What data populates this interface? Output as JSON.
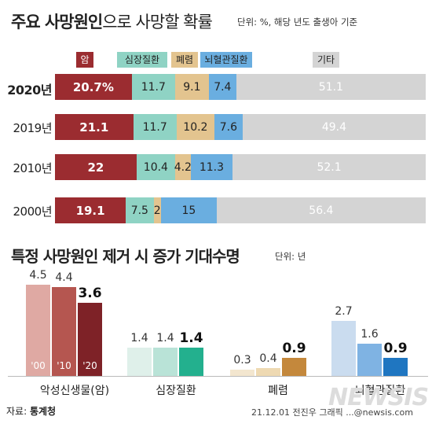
{
  "header": {
    "title_bold": "주요 사망원인",
    "title_light": "으로 사망할 확률",
    "unit": "단위: %, 해당 년도 출생아 기준"
  },
  "section2": {
    "title": "특정 사망원인 제거 시 증가 기대수명",
    "unit": "단위: 년"
  },
  "footer": {
    "source_label": "자료:",
    "source": "통계청",
    "credit": "21.12.01 전진우 그래픽 ...@newsis.com"
  },
  "watermark": "NEWSIS",
  "colors": {
    "cancer": "#9b2c30",
    "heart": "#8fd3c4",
    "pneumonia": "#e3c48f",
    "cerebro": "#6aaee0",
    "other": "#d4d4d4"
  },
  "chart_data": [
    {
      "type": "bar",
      "stacked": true,
      "orientation": "horizontal",
      "title": "주요 사망원인으로 사망할 확률",
      "unit": "단위: %, 해당 년도 출생아 기준",
      "categories": [
        "2020년",
        "2019년",
        "2010년",
        "2000년"
      ],
      "series": [
        {
          "name": "암",
          "values": [
            20.7,
            21.1,
            22,
            19.1
          ],
          "labels": [
            "20.7%",
            "21.1",
            "22",
            "19.1"
          ]
        },
        {
          "name": "심장질환",
          "values": [
            11.7,
            11.7,
            10.4,
            7.5
          ],
          "labels": [
            "11.7",
            "11.7",
            "10.4",
            "7.5"
          ]
        },
        {
          "name": "폐렴",
          "values": [
            9.1,
            10.2,
            4.2,
            2
          ],
          "labels": [
            "9.1",
            "10.2",
            "4.2",
            "2"
          ]
        },
        {
          "name": "뇌혈관질환",
          "values": [
            7.4,
            7.6,
            11.3,
            15
          ],
          "labels": [
            "7.4",
            "7.6",
            "11.3",
            "15"
          ]
        },
        {
          "name": "기타",
          "values": [
            51.1,
            49.4,
            52.1,
            56.4
          ],
          "labels": [
            "51.1",
            "49.4",
            "52.1",
            "56.4"
          ]
        }
      ]
    },
    {
      "type": "bar",
      "title": "특정 사망원인 제거 시 증가 기대수명",
      "unit": "단위: 년",
      "categories": [
        "악성신생물(암)",
        "심장질환",
        "폐렴",
        "뇌혈관질환"
      ],
      "year_labels": [
        "'00",
        "'10",
        "'20"
      ],
      "series": [
        {
          "name": "2000",
          "values": [
            4.5,
            1.4,
            0.3,
            2.7
          ],
          "labels": [
            "4.5",
            "1.4",
            "0.3",
            "2.7"
          ]
        },
        {
          "name": "2010",
          "values": [
            4.4,
            1.4,
            0.4,
            1.6
          ],
          "labels": [
            "4.4",
            "1.4",
            "0.4",
            "1.6"
          ]
        },
        {
          "name": "2020",
          "values": [
            3.6,
            1.4,
            0.9,
            0.9
          ],
          "labels": [
            "3.6",
            "1.4",
            "0.9",
            "0.9"
          ]
        }
      ],
      "palettes": [
        [
          "#dfa9a3",
          "#b55650",
          "#7e2227"
        ],
        [
          "#dff0ea",
          "#b9e3d7",
          "#23b08e"
        ],
        [
          "#f3e6cf",
          "#eed9b2",
          "#c4883c"
        ],
        [
          "#cadcef",
          "#7fb3e3",
          "#1f76c1"
        ]
      ]
    }
  ]
}
